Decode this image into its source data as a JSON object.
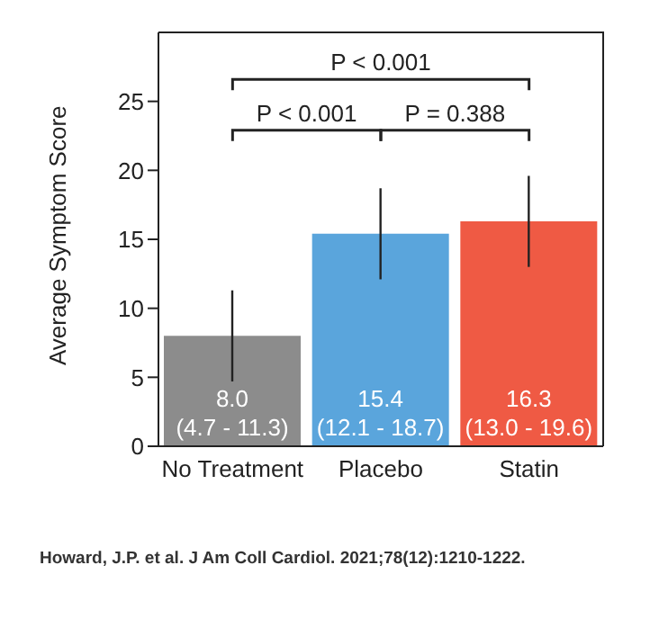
{
  "chart_data": {
    "type": "bar",
    "ylabel": "Average Symptom Score",
    "categories": [
      "No Treatment",
      "Placebo",
      "Statin"
    ],
    "values": [
      8.0,
      15.4,
      16.3
    ],
    "colors": [
      "#8c8c8c",
      "#5aa5dc",
      "#ef5a44"
    ],
    "errors": [
      [
        4.7,
        11.3
      ],
      [
        12.1,
        18.7
      ],
      [
        13.0,
        19.6
      ]
    ],
    "value_labels": [
      "8.0\n(4.7 - 11.3)",
      "15.4\n(12.1 - 18.7)",
      "16.3\n(13.0 - 19.6)"
    ],
    "ylim": [
      0,
      30
    ],
    "yticks": [
      0,
      5,
      10,
      15,
      20,
      25
    ],
    "annotations": [
      "P < 0.001",
      "P < 0.001",
      "P = 0.388",
      "Howard, J.P. et al. J Am Coll Cardiol. 2021;78(12):1210-1222."
    ]
  }
}
